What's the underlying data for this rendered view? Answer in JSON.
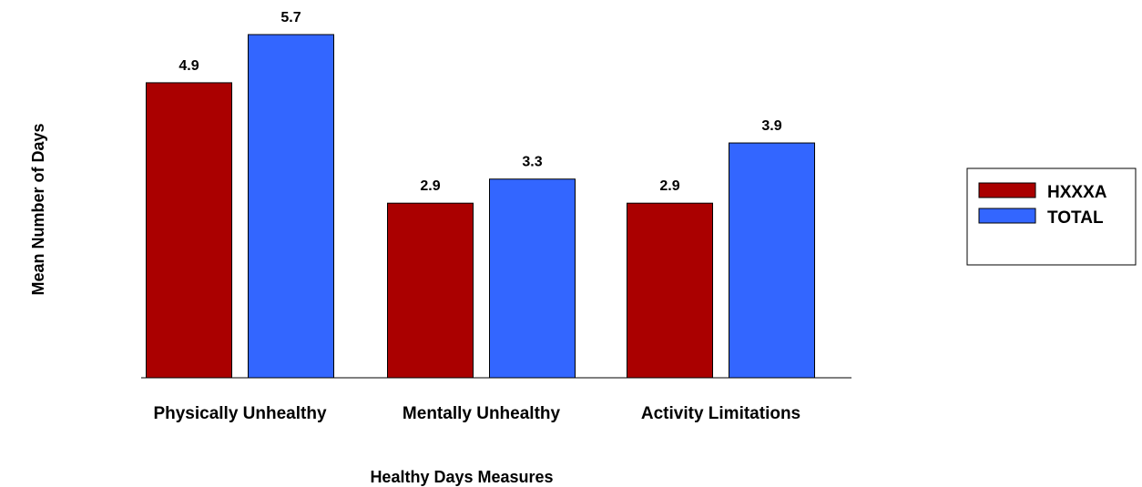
{
  "chart_data": {
    "type": "bar",
    "categories": [
      "Physically Unhealthy",
      "Mentally Unhealthy",
      "Activity Limitations"
    ],
    "series": [
      {
        "name": "HXXXA",
        "values": [
          4.9,
          2.9,
          2.9
        ],
        "color": "#AA0000"
      },
      {
        "name": "TOTAL",
        "values": [
          5.7,
          3.3,
          3.9
        ],
        "color": "#3366FF"
      }
    ],
    "data_labels": [
      [
        "4.9",
        "2.9",
        "2.9"
      ],
      [
        "5.7",
        "3.3",
        "3.9"
      ]
    ],
    "title": "",
    "xlabel": "Healthy Days Measures",
    "ylabel": "Mean Number of Days",
    "ylim": [
      0,
      5.7
    ],
    "grid": false,
    "legend_position": "right"
  }
}
